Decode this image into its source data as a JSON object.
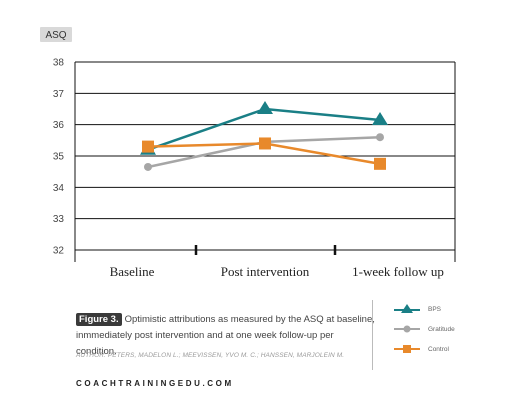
{
  "chart_data": {
    "type": "line",
    "ylabel": "ASQ",
    "ylim": [
      32,
      38
    ],
    "yticks": [
      32,
      33,
      34,
      35,
      36,
      37,
      38
    ],
    "categories": [
      "Baseline",
      "Post intervention",
      "1-week follow up"
    ],
    "series": [
      {
        "name": "BPS",
        "values": [
          35.2,
          36.5,
          36.15
        ],
        "color": "#1a7f86",
        "marker": "triangle"
      },
      {
        "name": "Gratitude",
        "values": [
          34.65,
          35.45,
          35.6
        ],
        "color": "#a6a6a6",
        "marker": "circle"
      },
      {
        "name": "Control",
        "values": [
          35.3,
          35.4,
          34.75
        ],
        "color": "#e8892b",
        "marker": "square"
      }
    ]
  },
  "caption": {
    "tag": "Figure 3.",
    "text": "Optimistic attributions as measured by the ASQ at baseline, inmmediately post intervention and at one week follow-up per condition.",
    "author": "AUTHOR: PETERS, MADELON L.; MEEVISSEN, YVO M. C.; HANSSEN, MARJOLEIN M."
  },
  "site": "COACHTRAININGEDU.COM"
}
